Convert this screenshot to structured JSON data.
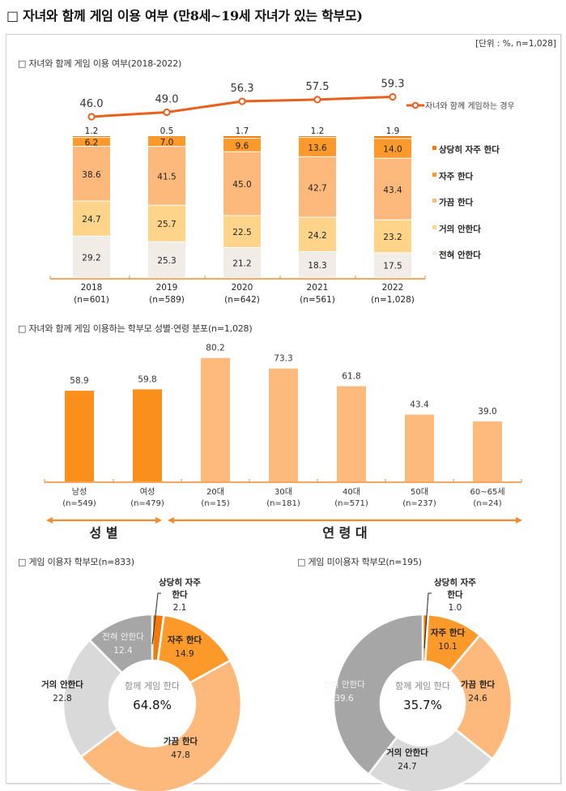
{
  "title": "□ 자녀와 함께 게임 이용 여부 (만8세~19세 자녀가 있는 학부모)",
  "unit": "[단위 : %, n=1,028]",
  "colors": {
    "very_often": "#F27A0C",
    "often": "#FB9A2A",
    "sometimes": "#FDB97B",
    "rarely": "#FED48A",
    "never": "#F1ECE6",
    "line": "#E8601C",
    "gender_bar": "#FB8F1C",
    "age_bar": "#FDBA7C",
    "axis": "#F28A2E",
    "donut_rarely": "#D9D9D9",
    "donut_never": "#A6A6A6"
  },
  "chart_data": [
    {
      "type": "bar",
      "stacked": true,
      "title": "□ 자녀와 함께 게임 이용 여부(2018-2022)",
      "categories": [
        "2018",
        "2019",
        "2020",
        "2021",
        "2022"
      ],
      "category_sublabels": [
        "(n=601)",
        "(n=589)",
        "(n=642)",
        "(n=561)",
        "(n=1,028)"
      ],
      "series": [
        {
          "name": "전혀 안한다",
          "values": [
            29.2,
            25.3,
            21.2,
            18.3,
            17.5
          ]
        },
        {
          "name": "거의 안한다",
          "values": [
            24.7,
            25.7,
            22.5,
            24.2,
            23.2
          ]
        },
        {
          "name": "가끔 한다",
          "values": [
            38.6,
            41.5,
            45.0,
            42.7,
            43.4
          ]
        },
        {
          "name": "자주 한다",
          "values": [
            6.2,
            7.0,
            9.6,
            13.6,
            14.0
          ]
        },
        {
          "name": "상당히 자주 한다",
          "values": [
            1.2,
            0.5,
            1.7,
            1.2,
            1.9
          ]
        }
      ],
      "legend": [
        "상당히 자주 한다",
        "자주 한다",
        "가끔 한다",
        "거의 안한다",
        "전혀 안한다"
      ],
      "line_series": {
        "name": "자녀와 함께 게임하는 경우",
        "values": [
          46.0,
          49.0,
          56.3,
          57.5,
          59.3
        ]
      },
      "legend_position": "right",
      "ylim": [
        0,
        100
      ]
    },
    {
      "type": "bar",
      "title": "□ 자녀와 함께 게임 이용하는 학부모 성별·연령 분포(n=1,028)",
      "categories": [
        "남성",
        "여성",
        "20대",
        "30대",
        "40대",
        "50대",
        "60~65세"
      ],
      "category_sublabels": [
        "(n=549)",
        "(n=479)",
        "(n=15)",
        "(n=181)",
        "(n=571)",
        "(n=237)",
        "(n=24)"
      ],
      "values": [
        58.9,
        59.8,
        80.2,
        73.3,
        61.8,
        43.4,
        39.0
      ],
      "groups": [
        {
          "label": "성 별",
          "count": 2
        },
        {
          "label": "연 령 대",
          "count": 5
        }
      ],
      "ylim": [
        0,
        100
      ]
    },
    {
      "type": "pie",
      "donut": true,
      "title": "□ 게임 이용자 학부모(n=833)",
      "center_label": "함께 게임 한다",
      "center_value": "64.8%",
      "slices": [
        {
          "label": "상당히 자주 한다",
          "label_lines": [
            "상당히 자주",
            "한다"
          ],
          "value": 2.1
        },
        {
          "label": "자주 한다",
          "value": 14.9
        },
        {
          "label": "가끔 한다",
          "value": 47.8
        },
        {
          "label": "거의 안한다",
          "value": 22.8
        },
        {
          "label": "전혀 안한다",
          "value": 12.4
        }
      ]
    },
    {
      "type": "pie",
      "donut": true,
      "title": "□ 게임 미이용자 학부모(n=195)",
      "center_label": "함께 게임 한다",
      "center_value": "35.7%",
      "slices": [
        {
          "label": "상당히 자주 한다",
          "label_lines": [
            "상당히 자주",
            "한다"
          ],
          "value": 1.0
        },
        {
          "label": "자주 한다",
          "value": 10.1
        },
        {
          "label": "가끔 한다",
          "value": 24.6
        },
        {
          "label": "거의 안한다",
          "value": 24.7
        },
        {
          "label": "전혀 안한다",
          "value": 39.6
        }
      ]
    }
  ]
}
